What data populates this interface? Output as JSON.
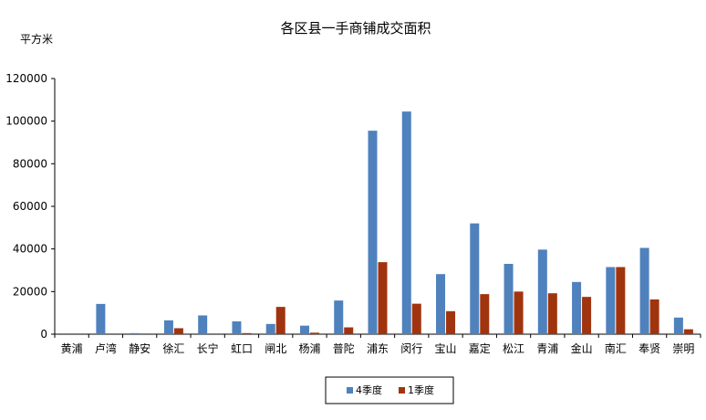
{
  "chart_data": {
    "type": "bar",
    "title": "各区县一手商铺成交面积",
    "ylabel": "平方米",
    "xlabel": "",
    "ylim": [
      0,
      120000
    ],
    "yticks": [
      0,
      20000,
      40000,
      60000,
      80000,
      100000,
      120000
    ],
    "grid": false,
    "legend_position": "bottom-center",
    "categories": [
      "黄浦",
      "卢湾",
      "静安",
      "徐汇",
      "长宁",
      "虹口",
      "闸北",
      "杨浦",
      "普陀",
      "浦东",
      "闵行",
      "宝山",
      "嘉定",
      "松江",
      "青浦",
      "金山",
      "南汇",
      "奉贤",
      "崇明"
    ],
    "series": [
      {
        "name": "4季度",
        "color": "#4F81BD",
        "values": [
          0,
          14200,
          500,
          6500,
          8800,
          6000,
          4800,
          4000,
          15800,
          95500,
          104500,
          28200,
          52000,
          33000,
          39700,
          24500,
          31500,
          40500,
          7800
        ]
      },
      {
        "name": "1季度",
        "color": "#A0340F",
        "values": [
          0,
          0,
          0,
          2800,
          0,
          500,
          12800,
          700,
          3200,
          33800,
          14300,
          10800,
          18800,
          20000,
          19200,
          17500,
          31500,
          16300,
          2300
        ]
      }
    ]
  }
}
